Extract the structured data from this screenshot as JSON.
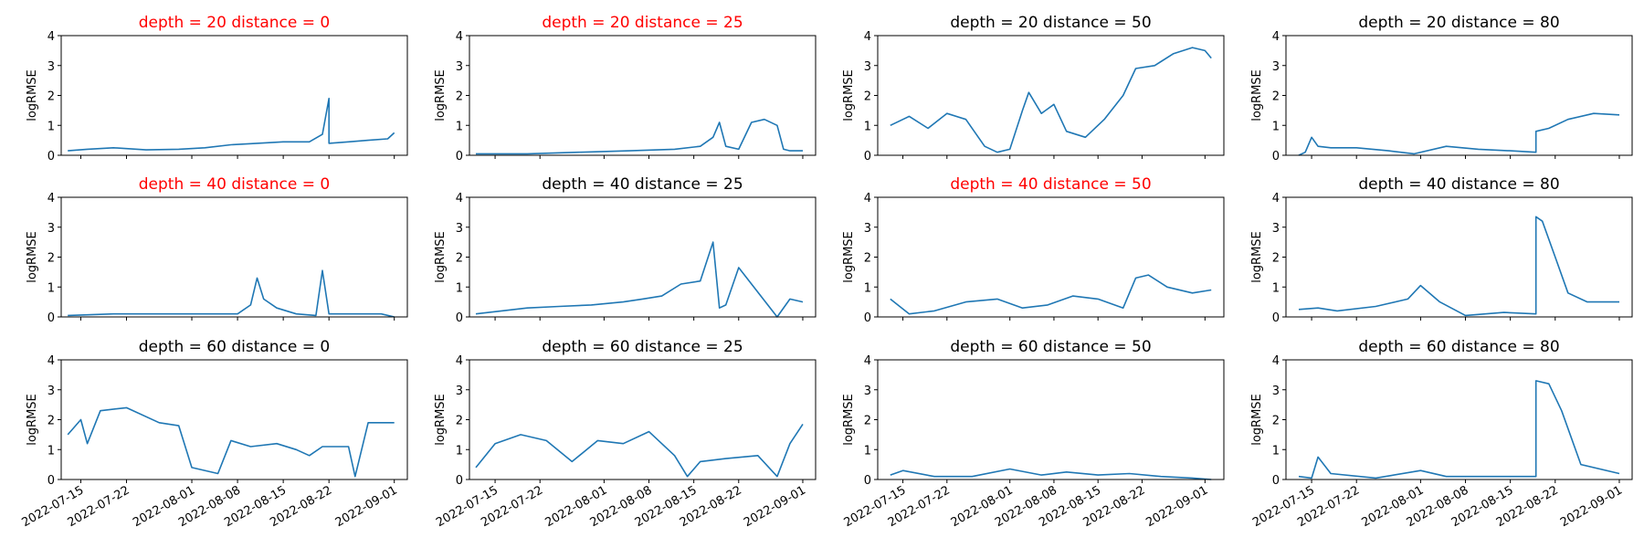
{
  "chart_data": [
    {
      "type": "line",
      "title": "depth = 20  distance = 0",
      "highlight": true,
      "ylabel": "logRMSE",
      "ylim": [
        0,
        4
      ],
      "xlim": [
        "2022-07-12",
        "2022-09-03"
      ],
      "xticks": [
        "2022-07-15",
        "2022-07-22",
        "2022-08-01",
        "2022-08-08",
        "2022-08-15",
        "2022-08-22",
        "2022-09-01"
      ],
      "series": [
        {
          "x": [
            "2022-07-13",
            "2022-07-16",
            "2022-07-20",
            "2022-07-25",
            "2022-07-30",
            "2022-08-03",
            "2022-08-07",
            "2022-08-11",
            "2022-08-15",
            "2022-08-19",
            "2022-08-21",
            "2022-08-22",
            "2022-08-22",
            "2022-08-25",
            "2022-08-28",
            "2022-08-31",
            "2022-09-01"
          ],
          "y": [
            0.15,
            0.2,
            0.25,
            0.18,
            0.2,
            0.25,
            0.35,
            0.4,
            0.45,
            0.45,
            0.7,
            1.9,
            0.4,
            0.45,
            0.5,
            0.55,
            0.75
          ]
        }
      ]
    },
    {
      "type": "line",
      "title": "depth = 20  distance = 25",
      "highlight": true,
      "ylabel": "logRMSE",
      "ylim": [
        0,
        4
      ],
      "xlim": [
        "2022-07-11",
        "2022-09-03"
      ],
      "xticks": [
        "2022-07-15",
        "2022-07-22",
        "2022-08-01",
        "2022-08-08",
        "2022-08-15",
        "2022-08-22",
        "2022-09-01"
      ],
      "series": [
        {
          "x": [
            "2022-07-12",
            "2022-07-20",
            "2022-07-28",
            "2022-08-05",
            "2022-08-12",
            "2022-08-16",
            "2022-08-18",
            "2022-08-19",
            "2022-08-20",
            "2022-08-22",
            "2022-08-24",
            "2022-08-26",
            "2022-08-28",
            "2022-08-29",
            "2022-08-30",
            "2022-09-01"
          ],
          "y": [
            0.05,
            0.05,
            0.1,
            0.15,
            0.2,
            0.3,
            0.6,
            1.1,
            0.3,
            0.2,
            1.1,
            1.2,
            1.0,
            0.2,
            0.15,
            0.15
          ]
        }
      ]
    },
    {
      "type": "line",
      "title": "depth = 20  distance = 50",
      "highlight": false,
      "ylabel": "logRMSE",
      "ylim": [
        0,
        4
      ],
      "xlim": [
        "2022-07-11",
        "2022-09-04"
      ],
      "xticks": [
        "2022-07-15",
        "2022-07-22",
        "2022-08-01",
        "2022-08-08",
        "2022-08-15",
        "2022-08-22",
        "2022-09-01"
      ],
      "series": [
        {
          "x": [
            "2022-07-13",
            "2022-07-16",
            "2022-07-19",
            "2022-07-22",
            "2022-07-25",
            "2022-07-28",
            "2022-07-30",
            "2022-08-01",
            "2022-08-03",
            "2022-08-04",
            "2022-08-06",
            "2022-08-08",
            "2022-08-10",
            "2022-08-13",
            "2022-08-16",
            "2022-08-19",
            "2022-08-21",
            "2022-08-24",
            "2022-08-27",
            "2022-08-30",
            "2022-09-01",
            "2022-09-02"
          ],
          "y": [
            1.0,
            1.3,
            0.9,
            1.4,
            1.2,
            0.3,
            0.1,
            0.2,
            1.5,
            2.1,
            1.4,
            1.7,
            0.8,
            0.6,
            1.2,
            2.0,
            2.9,
            3.0,
            3.4,
            3.6,
            3.5,
            3.25
          ]
        }
      ]
    },
    {
      "type": "line",
      "title": "depth = 20  distance = 80",
      "highlight": false,
      "ylabel": "logRMSE",
      "ylim": [
        0,
        4
      ],
      "xlim": [
        "2022-07-11",
        "2022-09-03"
      ],
      "xticks": [
        "2022-07-15",
        "2022-07-22",
        "2022-08-01",
        "2022-08-08",
        "2022-08-15",
        "2022-08-22",
        "2022-09-01"
      ],
      "series": [
        {
          "x": [
            "2022-07-13",
            "2022-07-14",
            "2022-07-15",
            "2022-07-16",
            "2022-07-18",
            "2022-07-22",
            "2022-07-27",
            "2022-07-31",
            "2022-08-05",
            "2022-08-10",
            "2022-08-15",
            "2022-08-19",
            "2022-08-19",
            "2022-08-21",
            "2022-08-24",
            "2022-08-28",
            "2022-09-01"
          ],
          "y": [
            0.0,
            0.1,
            0.6,
            0.3,
            0.25,
            0.25,
            0.15,
            0.05,
            0.3,
            0.2,
            0.15,
            0.1,
            0.8,
            0.9,
            1.2,
            1.4,
            1.35
          ]
        }
      ]
    },
    {
      "type": "line",
      "title": "depth = 40  distance = 0",
      "highlight": true,
      "ylabel": "logRMSE",
      "ylim": [
        0,
        4
      ],
      "xlim": [
        "2022-07-12",
        "2022-09-03"
      ],
      "xticks": [
        "2022-07-15",
        "2022-07-22",
        "2022-08-01",
        "2022-08-08",
        "2022-08-15",
        "2022-08-22",
        "2022-09-01"
      ],
      "series": [
        {
          "x": [
            "2022-07-13",
            "2022-07-20",
            "2022-07-30",
            "2022-08-08",
            "2022-08-10",
            "2022-08-11",
            "2022-08-12",
            "2022-08-14",
            "2022-08-17",
            "2022-08-20",
            "2022-08-21",
            "2022-08-22",
            "2022-08-25",
            "2022-08-30",
            "2022-09-01"
          ],
          "y": [
            0.05,
            0.1,
            0.1,
            0.1,
            0.4,
            1.3,
            0.6,
            0.3,
            0.1,
            0.05,
            1.55,
            0.1,
            0.1,
            0.1,
            0.0
          ]
        }
      ]
    },
    {
      "type": "line",
      "title": "depth = 40  distance = 25",
      "highlight": false,
      "ylabel": "logRMSE",
      "ylim": [
        0,
        4
      ],
      "xlim": [
        "2022-07-11",
        "2022-09-03"
      ],
      "xticks": [
        "2022-07-15",
        "2022-07-22",
        "2022-08-01",
        "2022-08-08",
        "2022-08-15",
        "2022-08-22",
        "2022-09-01"
      ],
      "series": [
        {
          "x": [
            "2022-07-12",
            "2022-07-16",
            "2022-07-20",
            "2022-07-25",
            "2022-07-30",
            "2022-08-04",
            "2022-08-07",
            "2022-08-10",
            "2022-08-13",
            "2022-08-16",
            "2022-08-18",
            "2022-08-19",
            "2022-08-20",
            "2022-08-22",
            "2022-08-28",
            "2022-08-30",
            "2022-09-01"
          ],
          "y": [
            0.1,
            0.2,
            0.3,
            0.35,
            0.4,
            0.5,
            0.6,
            0.7,
            1.1,
            1.2,
            2.5,
            0.3,
            0.4,
            1.65,
            0.0,
            0.6,
            0.5
          ]
        }
      ]
    },
    {
      "type": "line",
      "title": "depth = 40  distance = 50",
      "highlight": true,
      "ylabel": "logRMSE",
      "ylim": [
        0,
        4
      ],
      "xlim": [
        "2022-07-11",
        "2022-09-04"
      ],
      "xticks": [
        "2022-07-15",
        "2022-07-22",
        "2022-08-01",
        "2022-08-08",
        "2022-08-15",
        "2022-08-22",
        "2022-09-01"
      ],
      "series": [
        {
          "x": [
            "2022-07-13",
            "2022-07-16",
            "2022-07-20",
            "2022-07-25",
            "2022-07-30",
            "2022-08-03",
            "2022-08-07",
            "2022-08-11",
            "2022-08-15",
            "2022-08-19",
            "2022-08-21",
            "2022-08-23",
            "2022-08-26",
            "2022-08-30",
            "2022-09-02"
          ],
          "y": [
            0.6,
            0.1,
            0.2,
            0.5,
            0.6,
            0.3,
            0.4,
            0.7,
            0.6,
            0.3,
            1.3,
            1.4,
            1.0,
            0.8,
            0.9
          ]
        }
      ]
    },
    {
      "type": "line",
      "title": "depth = 40  distance = 80",
      "highlight": false,
      "ylabel": "logRMSE",
      "ylim": [
        0,
        4
      ],
      "xlim": [
        "2022-07-11",
        "2022-09-03"
      ],
      "xticks": [
        "2022-07-15",
        "2022-07-22",
        "2022-08-01",
        "2022-08-08",
        "2022-08-15",
        "2022-08-22",
        "2022-09-01"
      ],
      "series": [
        {
          "x": [
            "2022-07-13",
            "2022-07-16",
            "2022-07-19",
            "2022-07-25",
            "2022-07-30",
            "2022-08-01",
            "2022-08-04",
            "2022-08-08",
            "2022-08-14",
            "2022-08-19",
            "2022-08-19",
            "2022-08-20",
            "2022-08-22",
            "2022-08-24",
            "2022-08-27",
            "2022-09-01"
          ],
          "y": [
            0.25,
            0.3,
            0.2,
            0.35,
            0.6,
            1.05,
            0.5,
            0.05,
            0.15,
            0.1,
            3.35,
            3.2,
            2.0,
            0.8,
            0.5,
            0.5
          ]
        }
      ]
    },
    {
      "type": "line",
      "title": "depth = 60  distance = 0",
      "highlight": false,
      "ylabel": "logRMSE",
      "ylim": [
        0,
        4
      ],
      "xlim": [
        "2022-07-12",
        "2022-09-03"
      ],
      "xticks": [
        "2022-07-15",
        "2022-07-22",
        "2022-08-01",
        "2022-08-08",
        "2022-08-15",
        "2022-08-22",
        "2022-09-01"
      ],
      "series": [
        {
          "x": [
            "2022-07-13",
            "2022-07-15",
            "2022-07-16",
            "2022-07-18",
            "2022-07-22",
            "2022-07-27",
            "2022-07-30",
            "2022-08-01",
            "2022-08-05",
            "2022-08-07",
            "2022-08-10",
            "2022-08-14",
            "2022-08-17",
            "2022-08-19",
            "2022-08-21",
            "2022-08-25",
            "2022-08-26",
            "2022-08-28",
            "2022-09-01"
          ],
          "y": [
            1.5,
            2.0,
            1.2,
            2.3,
            2.4,
            1.9,
            1.8,
            0.4,
            0.2,
            1.3,
            1.1,
            1.2,
            1.0,
            0.8,
            1.1,
            1.1,
            0.1,
            1.9,
            1.9
          ]
        }
      ]
    },
    {
      "type": "line",
      "title": "depth = 60  distance = 25",
      "highlight": false,
      "ylabel": "logRMSE",
      "ylim": [
        0,
        4
      ],
      "xlim": [
        "2022-07-11",
        "2022-09-03"
      ],
      "xticks": [
        "2022-07-15",
        "2022-07-22",
        "2022-08-01",
        "2022-08-08",
        "2022-08-15",
        "2022-08-22",
        "2022-09-01"
      ],
      "series": [
        {
          "x": [
            "2022-07-12",
            "2022-07-15",
            "2022-07-19",
            "2022-07-23",
            "2022-07-27",
            "2022-07-31",
            "2022-08-04",
            "2022-08-08",
            "2022-08-12",
            "2022-08-14",
            "2022-08-16",
            "2022-08-20",
            "2022-08-25",
            "2022-08-28",
            "2022-08-30",
            "2022-09-01"
          ],
          "y": [
            0.4,
            1.2,
            1.5,
            1.3,
            0.6,
            1.3,
            1.2,
            1.6,
            0.8,
            0.1,
            0.6,
            0.7,
            0.8,
            0.1,
            1.2,
            1.85
          ]
        }
      ]
    },
    {
      "type": "line",
      "title": "depth = 60  distance = 50",
      "highlight": false,
      "ylabel": "logRMSE",
      "ylim": [
        0,
        4
      ],
      "xlim": [
        "2022-07-11",
        "2022-09-04"
      ],
      "xticks": [
        "2022-07-15",
        "2022-07-22",
        "2022-08-01",
        "2022-08-08",
        "2022-08-15",
        "2022-08-22",
        "2022-09-01"
      ],
      "series": [
        {
          "x": [
            "2022-07-13",
            "2022-07-15",
            "2022-07-20",
            "2022-07-26",
            "2022-08-01",
            "2022-08-06",
            "2022-08-10",
            "2022-08-15",
            "2022-08-20",
            "2022-08-25",
            "2022-08-30",
            "2022-09-02"
          ],
          "y": [
            0.15,
            0.3,
            0.1,
            0.1,
            0.35,
            0.15,
            0.25,
            0.15,
            0.2,
            0.1,
            0.05,
            0.0
          ]
        }
      ]
    },
    {
      "type": "line",
      "title": "depth = 60  distance = 80",
      "highlight": false,
      "ylabel": "logRMSE",
      "ylim": [
        0,
        4
      ],
      "xlim": [
        "2022-07-11",
        "2022-09-03"
      ],
      "xticks": [
        "2022-07-15",
        "2022-07-22",
        "2022-08-01",
        "2022-08-08",
        "2022-08-15",
        "2022-08-22",
        "2022-09-01"
      ],
      "series": [
        {
          "x": [
            "2022-07-13",
            "2022-07-15",
            "2022-07-16",
            "2022-07-18",
            "2022-07-25",
            "2022-08-01",
            "2022-08-05",
            "2022-08-10",
            "2022-08-19",
            "2022-08-19",
            "2022-08-21",
            "2022-08-23",
            "2022-08-26",
            "2022-09-01"
          ],
          "y": [
            0.1,
            0.05,
            0.75,
            0.2,
            0.05,
            0.3,
            0.1,
            0.1,
            0.1,
            3.3,
            3.2,
            2.3,
            0.5,
            0.2
          ]
        }
      ]
    }
  ],
  "colors": {
    "line": "#1f77b4",
    "title_highlight": "#ff0000",
    "title_normal": "#000000"
  }
}
